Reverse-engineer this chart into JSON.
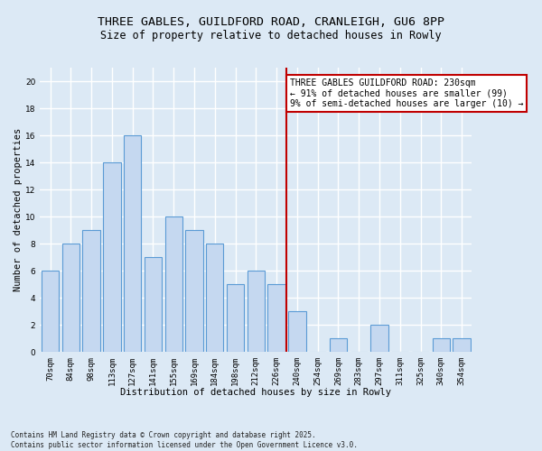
{
  "title_line1": "THREE GABLES, GUILDFORD ROAD, CRANLEIGH, GU6 8PP",
  "title_line2": "Size of property relative to detached houses in Rowly",
  "xlabel": "Distribution of detached houses by size in Rowly",
  "ylabel": "Number of detached properties",
  "categories": [
    "70sqm",
    "84sqm",
    "98sqm",
    "113sqm",
    "127sqm",
    "141sqm",
    "155sqm",
    "169sqm",
    "184sqm",
    "198sqm",
    "212sqm",
    "226sqm",
    "240sqm",
    "254sqm",
    "269sqm",
    "283sqm",
    "297sqm",
    "311sqm",
    "325sqm",
    "340sqm",
    "354sqm"
  ],
  "values": [
    6,
    8,
    9,
    14,
    16,
    7,
    10,
    9,
    8,
    5,
    6,
    5,
    3,
    0,
    1,
    0,
    2,
    0,
    0,
    1,
    1
  ],
  "bar_color": "#c5d8f0",
  "bar_edge_color": "#5b9bd5",
  "background_color": "#dce9f5",
  "grid_color": "#ffffff",
  "vline_x": 11.5,
  "vline_color": "#c00000",
  "annotation_text": "THREE GABLES GUILDFORD ROAD: 230sqm\n← 91% of detached houses are smaller (99)\n9% of semi-detached houses are larger (10) →",
  "annotation_box_color": "#ffffff",
  "annotation_box_edge_color": "#c00000",
  "footnote": "Contains HM Land Registry data © Crown copyright and database right 2025.\nContains public sector information licensed under the Open Government Licence v3.0.",
  "ylim": [
    0,
    21
  ],
  "yticks": [
    0,
    2,
    4,
    6,
    8,
    10,
    12,
    14,
    16,
    18,
    20
  ],
  "title_fontsize": 9.5,
  "subtitle_fontsize": 8.5,
  "axis_label_fontsize": 7.5,
  "tick_fontsize": 6.5,
  "annotation_fontsize": 7,
  "footnote_fontsize": 5.5
}
